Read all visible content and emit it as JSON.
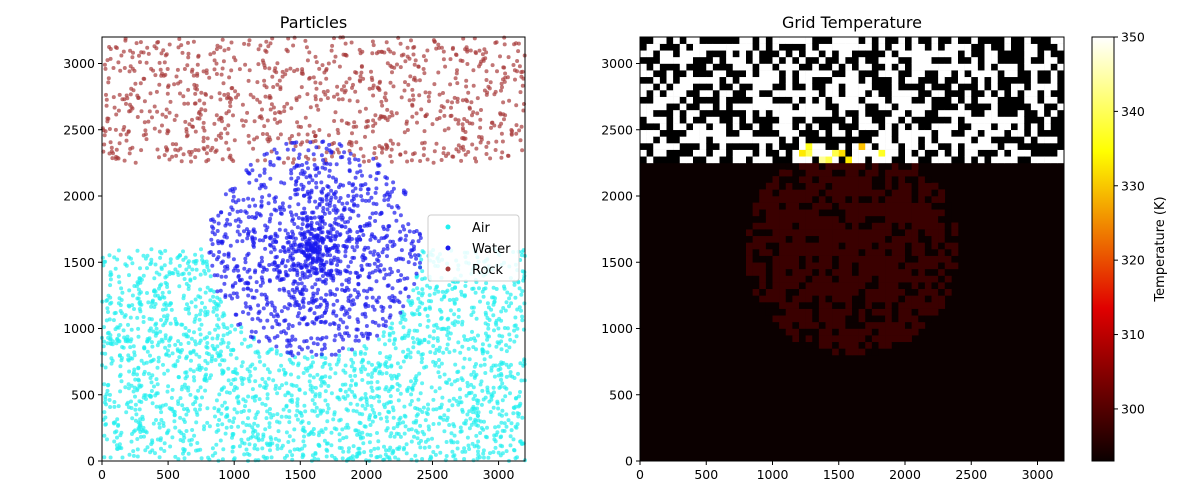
{
  "chart_data": [
    {
      "type": "scatter",
      "title": "Particles",
      "xlabel": "",
      "ylabel": "",
      "xlim": [
        0,
        3200
      ],
      "ylim": [
        0,
        3200
      ],
      "xticks": [
        "0",
        "500",
        "1000",
        "1500",
        "2000",
        "2500",
        "3000"
      ],
      "yticks": [
        "0",
        "500",
        "1000",
        "1500",
        "2000",
        "2500",
        "3000"
      ],
      "legend": {
        "placement": "center-right",
        "entries": [
          "Air",
          "Water",
          "Rock"
        ]
      },
      "series": [
        {
          "name": "Air",
          "color": "#22f0f0",
          "region": {
            "x": [
              0,
              3200
            ],
            "y": [
              0,
              1600
            ]
          },
          "count": 2600,
          "clear_circle": {
            "cx": 1600,
            "cy": 1600,
            "r": 800
          }
        },
        {
          "name": "Water",
          "color": "#1a1aee",
          "distribution": "disc",
          "center": [
            1600,
            1600
          ],
          "radius": 820,
          "count": 1300
        },
        {
          "name": "Rock",
          "color": "#a83c3c",
          "region": {
            "x": [
              0,
              3200
            ],
            "y": [
              2250,
              3200
            ]
          },
          "count": 900
        }
      ]
    },
    {
      "type": "heatmap",
      "title": "Grid Temperature",
      "xlim": [
        0,
        3200
      ],
      "ylim": [
        0,
        3200
      ],
      "grid": [
        64,
        64
      ],
      "xticks": [
        "0",
        "500",
        "1000",
        "1500",
        "2000",
        "2500",
        "3000"
      ],
      "yticks": [
        "0",
        "500",
        "1000",
        "1500",
        "2000",
        "2500",
        "3000"
      ],
      "colormap": "hot",
      "colorbar": {
        "label": "Temperature (K)",
        "range": [
          293,
          350
        ],
        "ticks": [
          "300",
          "310",
          "320",
          "330",
          "340",
          "350"
        ],
        "tick_values": [
          300,
          310,
          320,
          330,
          340,
          350
        ]
      },
      "regions": [
        {
          "name": "background",
          "temperature": 293
        },
        {
          "name": "water disc",
          "center": [
            1600,
            1600
          ],
          "radius": 800,
          "temperature": 297
        },
        {
          "name": "rock band",
          "y": [
            2240,
            3200
          ],
          "pattern": "random black/white cells"
        },
        {
          "name": "hot interface",
          "y": [
            2240,
            2400
          ],
          "x": [
            1150,
            1900
          ],
          "temperature_range": [
            330,
            345
          ]
        }
      ]
    }
  ]
}
